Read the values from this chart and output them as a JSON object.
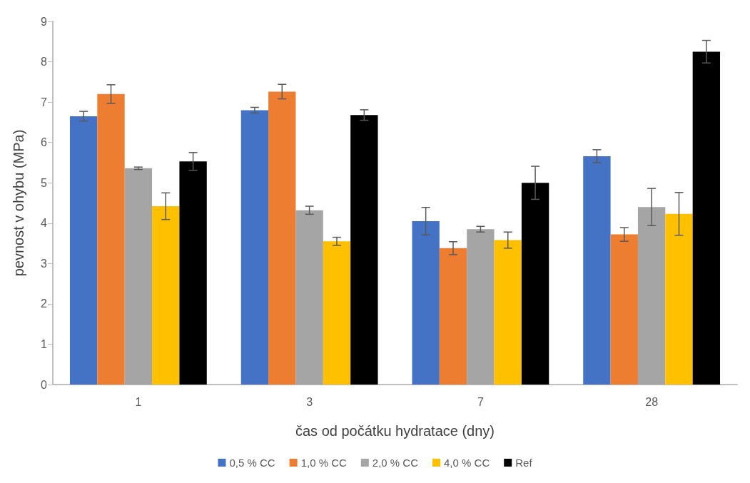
{
  "chart_data": {
    "type": "bar",
    "xlabel": "čas od počátku hydratace (dny)",
    "ylabel": "pevnost v ohybu (MPa)",
    "categories": [
      "1",
      "3",
      "7",
      "28"
    ],
    "series": [
      {
        "name": "0,5 % CC",
        "color": "#4472c4",
        "values": [
          6.65,
          6.8,
          4.05,
          5.66
        ],
        "errors": [
          0.12,
          0.07,
          0.34,
          0.16
        ]
      },
      {
        "name": "1,0 % CC",
        "color": "#ed7d31",
        "values": [
          7.2,
          7.26,
          3.38,
          3.72
        ],
        "errors": [
          0.23,
          0.18,
          0.16,
          0.17
        ]
      },
      {
        "name": "2,0 % CC",
        "color": "#a5a5a5",
        "values": [
          5.36,
          4.32,
          3.85,
          4.4
        ],
        "errors": [
          0.03,
          0.1,
          0.07,
          0.46
        ]
      },
      {
        "name": "4,0 % CC",
        "color": "#ffc000",
        "values": [
          4.42,
          3.55,
          3.58,
          4.23
        ],
        "errors": [
          0.33,
          0.1,
          0.2,
          0.53
        ]
      },
      {
        "name": "Ref",
        "color": "#000000",
        "values": [
          5.53,
          6.68,
          5.0,
          8.25
        ],
        "errors": [
          0.22,
          0.13,
          0.41,
          0.28
        ]
      }
    ],
    "ylim": [
      0,
      9
    ],
    "yticks": [
      0,
      1,
      2,
      3,
      4,
      5,
      6,
      7,
      8,
      9
    ],
    "grid": false,
    "legend": "bottom"
  }
}
